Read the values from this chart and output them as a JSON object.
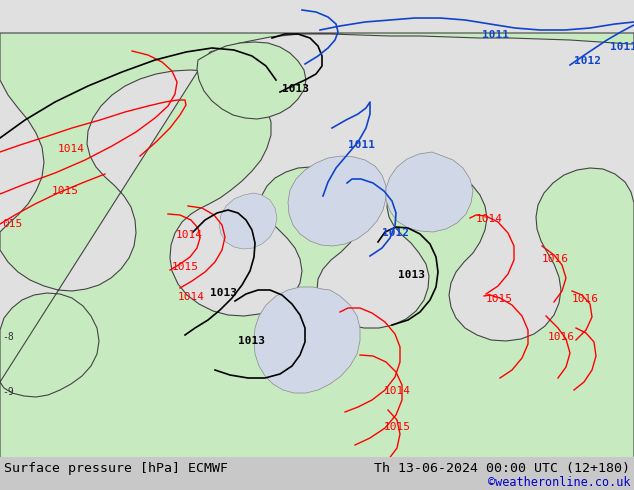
{
  "title_left": "Surface pressure [hPa] ECMWF",
  "title_right": "Th 13-06-2024 00:00 UTC (12+180)",
  "credit": "©weatheronline.co.uk",
  "fig_width": 6.34,
  "fig_height": 4.9,
  "dpi": 100,
  "bg_color": "#e2e2e2",
  "land_color": "#c8eac0",
  "sea_color": "#d0d8e8",
  "bar_color": "#c8c8c8",
  "credit_color": "#0000cc",
  "title_fontsize": 9.5,
  "credit_fontsize": 8.5
}
